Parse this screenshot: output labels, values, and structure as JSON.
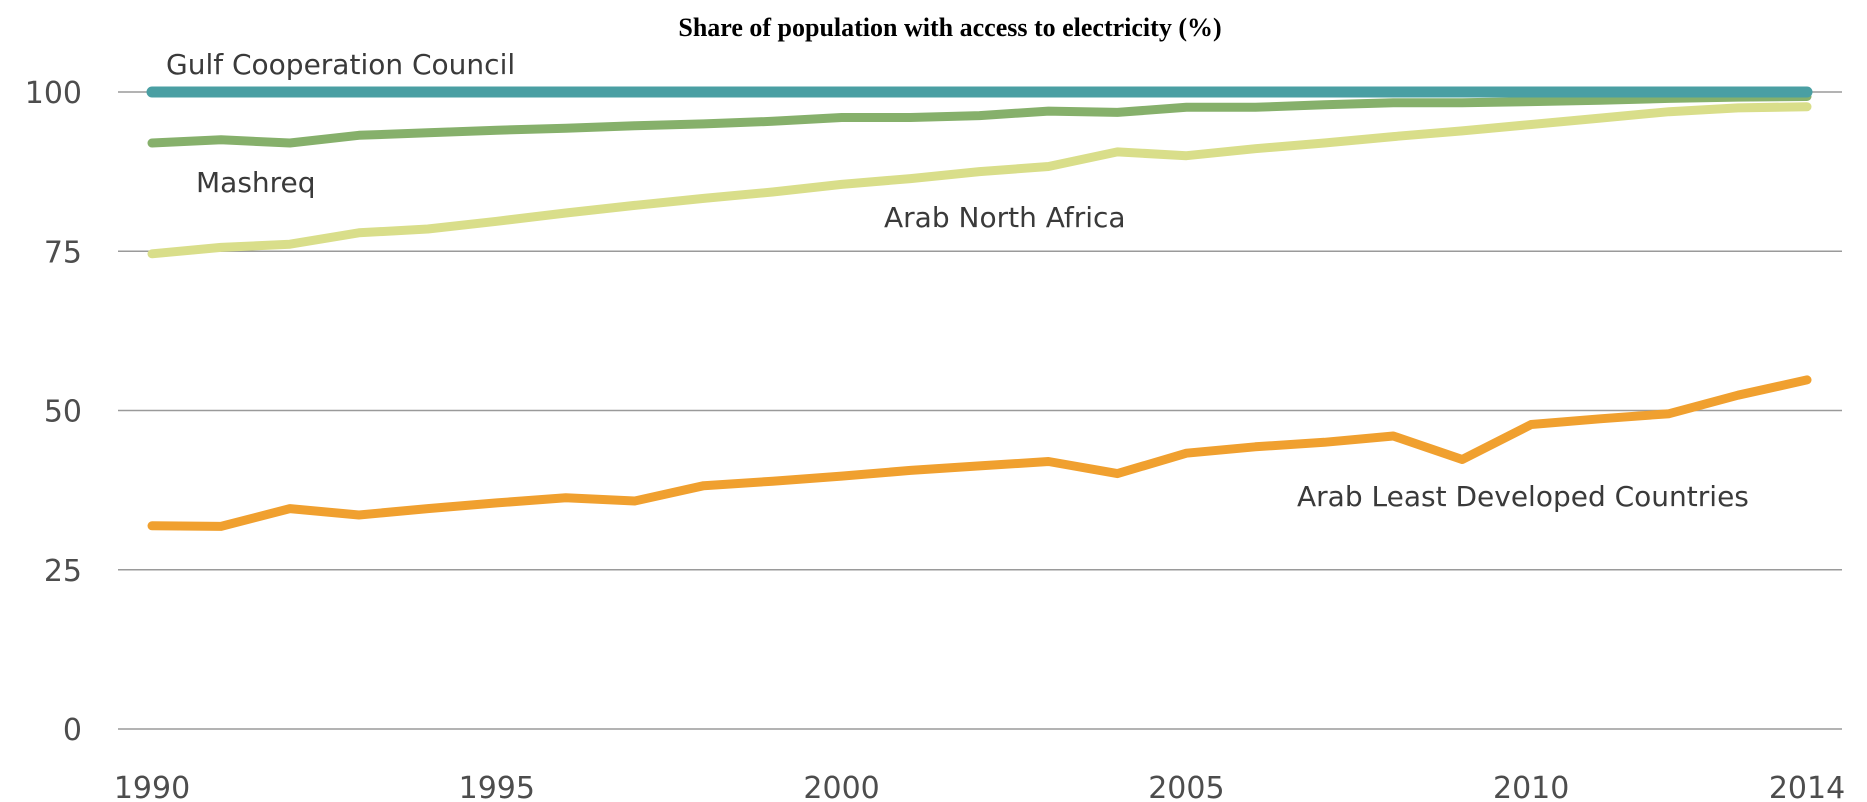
{
  "chart_data": {
    "type": "line",
    "title": "Share of population with access to electricity (%)",
    "xlabel": "",
    "ylabel": "",
    "x": [
      1990,
      1991,
      1992,
      1993,
      1994,
      1995,
      1996,
      1997,
      1998,
      1999,
      2000,
      2001,
      2002,
      2003,
      2004,
      2005,
      2006,
      2007,
      2008,
      2009,
      2010,
      2011,
      2012,
      2013,
      2014
    ],
    "xlim": [
      1990,
      2014
    ],
    "ylim": [
      0,
      100
    ],
    "x_ticks": [
      1990,
      1995,
      2000,
      2005,
      2010,
      2014
    ],
    "y_ticks": [
      0,
      25,
      50,
      75,
      100
    ],
    "x_tick_labels": [
      "1990",
      "1995",
      "2000",
      "2005",
      "2010",
      "2014"
    ],
    "y_tick_labels": [
      "0",
      "25",
      "50",
      "75",
      "100"
    ],
    "grid": "horizontal",
    "legend": "none",
    "series": [
      {
        "name": "Gulf Cooperation Council",
        "color": "#4a9fa3",
        "values": [
          100,
          100,
          100,
          100,
          100,
          100,
          100,
          100,
          100,
          100,
          100,
          100,
          100,
          100,
          100,
          100,
          100,
          100,
          100,
          100,
          100,
          100,
          100,
          100,
          100
        ]
      },
      {
        "name": "Mashreq",
        "color": "#86b06b",
        "values": [
          92,
          92.5,
          92,
          93.2,
          93.6,
          94,
          94.3,
          94.7,
          95,
          95.4,
          96,
          96,
          96.3,
          97,
          96.8,
          97.6,
          97.6,
          98,
          98.3,
          98.3,
          98.5,
          98.7,
          99,
          99.2,
          99.3
        ]
      },
      {
        "name": "Arab North Africa",
        "color": "#d9de8a",
        "values": [
          74.6,
          75.6,
          76.1,
          77.9,
          78.5,
          79.7,
          81,
          82.2,
          83.3,
          84.3,
          85.5,
          86.4,
          87.5,
          88.3,
          90.6,
          90,
          91.1,
          92,
          93,
          93.9,
          94.9,
          95.9,
          96.9,
          97.5,
          97.7
        ]
      },
      {
        "name": "Arab Least Developed Countries",
        "color": "#f0a02f",
        "values": [
          31.9,
          31.8,
          34.6,
          33.6,
          34.6,
          35.5,
          36.3,
          35.8,
          38.2,
          38.9,
          39.7,
          40.6,
          41.3,
          42,
          40.1,
          43.3,
          44.3,
          45,
          46,
          42.3,
          47.8,
          48.7,
          49.5,
          52.4,
          54.8
        ]
      }
    ]
  }
}
